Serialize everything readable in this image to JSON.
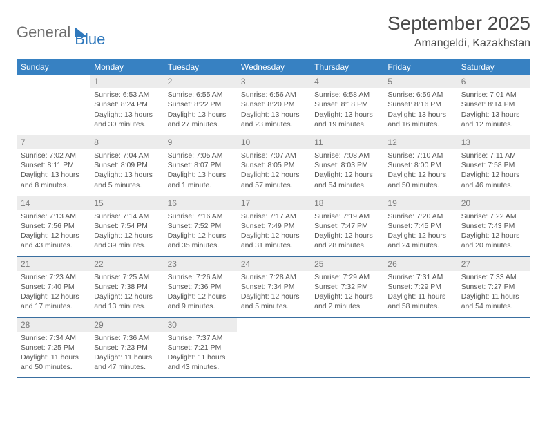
{
  "brand": {
    "part1": "General",
    "part2": "Blue"
  },
  "header": {
    "month_title": "September 2025",
    "location": "Amangeldi, Kazakhstan"
  },
  "colors": {
    "header_bg": "#3781c2",
    "header_fg": "#ffffff",
    "daynum_bg": "#ececec",
    "row_border": "#3a6fa0",
    "brand_blue": "#2f78bc",
    "text": "#4a4a4a"
  },
  "typography": {
    "month_title_fontsize": 28,
    "location_fontsize": 16,
    "th_fontsize": 12,
    "cell_fontsize": 10.5,
    "font_family": "Arial"
  },
  "daynames": [
    "Sunday",
    "Monday",
    "Tuesday",
    "Wednesday",
    "Thursday",
    "Friday",
    "Saturday"
  ],
  "weeks": [
    [
      {
        "empty": true
      },
      {
        "n": "1",
        "sunrise": "Sunrise: 6:53 AM",
        "sunset": "Sunset: 8:24 PM",
        "daylight": "Daylight: 13 hours and 30 minutes."
      },
      {
        "n": "2",
        "sunrise": "Sunrise: 6:55 AM",
        "sunset": "Sunset: 8:22 PM",
        "daylight": "Daylight: 13 hours and 27 minutes."
      },
      {
        "n": "3",
        "sunrise": "Sunrise: 6:56 AM",
        "sunset": "Sunset: 8:20 PM",
        "daylight": "Daylight: 13 hours and 23 minutes."
      },
      {
        "n": "4",
        "sunrise": "Sunrise: 6:58 AM",
        "sunset": "Sunset: 8:18 PM",
        "daylight": "Daylight: 13 hours and 19 minutes."
      },
      {
        "n": "5",
        "sunrise": "Sunrise: 6:59 AM",
        "sunset": "Sunset: 8:16 PM",
        "daylight": "Daylight: 13 hours and 16 minutes."
      },
      {
        "n": "6",
        "sunrise": "Sunrise: 7:01 AM",
        "sunset": "Sunset: 8:14 PM",
        "daylight": "Daylight: 13 hours and 12 minutes."
      }
    ],
    [
      {
        "n": "7",
        "sunrise": "Sunrise: 7:02 AM",
        "sunset": "Sunset: 8:11 PM",
        "daylight": "Daylight: 13 hours and 8 minutes."
      },
      {
        "n": "8",
        "sunrise": "Sunrise: 7:04 AM",
        "sunset": "Sunset: 8:09 PM",
        "daylight": "Daylight: 13 hours and 5 minutes."
      },
      {
        "n": "9",
        "sunrise": "Sunrise: 7:05 AM",
        "sunset": "Sunset: 8:07 PM",
        "daylight": "Daylight: 13 hours and 1 minute."
      },
      {
        "n": "10",
        "sunrise": "Sunrise: 7:07 AM",
        "sunset": "Sunset: 8:05 PM",
        "daylight": "Daylight: 12 hours and 57 minutes."
      },
      {
        "n": "11",
        "sunrise": "Sunrise: 7:08 AM",
        "sunset": "Sunset: 8:03 PM",
        "daylight": "Daylight: 12 hours and 54 minutes."
      },
      {
        "n": "12",
        "sunrise": "Sunrise: 7:10 AM",
        "sunset": "Sunset: 8:00 PM",
        "daylight": "Daylight: 12 hours and 50 minutes."
      },
      {
        "n": "13",
        "sunrise": "Sunrise: 7:11 AM",
        "sunset": "Sunset: 7:58 PM",
        "daylight": "Daylight: 12 hours and 46 minutes."
      }
    ],
    [
      {
        "n": "14",
        "sunrise": "Sunrise: 7:13 AM",
        "sunset": "Sunset: 7:56 PM",
        "daylight": "Daylight: 12 hours and 43 minutes."
      },
      {
        "n": "15",
        "sunrise": "Sunrise: 7:14 AM",
        "sunset": "Sunset: 7:54 PM",
        "daylight": "Daylight: 12 hours and 39 minutes."
      },
      {
        "n": "16",
        "sunrise": "Sunrise: 7:16 AM",
        "sunset": "Sunset: 7:52 PM",
        "daylight": "Daylight: 12 hours and 35 minutes."
      },
      {
        "n": "17",
        "sunrise": "Sunrise: 7:17 AM",
        "sunset": "Sunset: 7:49 PM",
        "daylight": "Daylight: 12 hours and 31 minutes."
      },
      {
        "n": "18",
        "sunrise": "Sunrise: 7:19 AM",
        "sunset": "Sunset: 7:47 PM",
        "daylight": "Daylight: 12 hours and 28 minutes."
      },
      {
        "n": "19",
        "sunrise": "Sunrise: 7:20 AM",
        "sunset": "Sunset: 7:45 PM",
        "daylight": "Daylight: 12 hours and 24 minutes."
      },
      {
        "n": "20",
        "sunrise": "Sunrise: 7:22 AM",
        "sunset": "Sunset: 7:43 PM",
        "daylight": "Daylight: 12 hours and 20 minutes."
      }
    ],
    [
      {
        "n": "21",
        "sunrise": "Sunrise: 7:23 AM",
        "sunset": "Sunset: 7:40 PM",
        "daylight": "Daylight: 12 hours and 17 minutes."
      },
      {
        "n": "22",
        "sunrise": "Sunrise: 7:25 AM",
        "sunset": "Sunset: 7:38 PM",
        "daylight": "Daylight: 12 hours and 13 minutes."
      },
      {
        "n": "23",
        "sunrise": "Sunrise: 7:26 AM",
        "sunset": "Sunset: 7:36 PM",
        "daylight": "Daylight: 12 hours and 9 minutes."
      },
      {
        "n": "24",
        "sunrise": "Sunrise: 7:28 AM",
        "sunset": "Sunset: 7:34 PM",
        "daylight": "Daylight: 12 hours and 5 minutes."
      },
      {
        "n": "25",
        "sunrise": "Sunrise: 7:29 AM",
        "sunset": "Sunset: 7:32 PM",
        "daylight": "Daylight: 12 hours and 2 minutes."
      },
      {
        "n": "26",
        "sunrise": "Sunrise: 7:31 AM",
        "sunset": "Sunset: 7:29 PM",
        "daylight": "Daylight: 11 hours and 58 minutes."
      },
      {
        "n": "27",
        "sunrise": "Sunrise: 7:33 AM",
        "sunset": "Sunset: 7:27 PM",
        "daylight": "Daylight: 11 hours and 54 minutes."
      }
    ],
    [
      {
        "n": "28",
        "sunrise": "Sunrise: 7:34 AM",
        "sunset": "Sunset: 7:25 PM",
        "daylight": "Daylight: 11 hours and 50 minutes."
      },
      {
        "n": "29",
        "sunrise": "Sunrise: 7:36 AM",
        "sunset": "Sunset: 7:23 PM",
        "daylight": "Daylight: 11 hours and 47 minutes."
      },
      {
        "n": "30",
        "sunrise": "Sunrise: 7:37 AM",
        "sunset": "Sunset: 7:21 PM",
        "daylight": "Daylight: 11 hours and 43 minutes."
      },
      {
        "empty": true
      },
      {
        "empty": true
      },
      {
        "empty": true
      },
      {
        "empty": true
      }
    ]
  ]
}
